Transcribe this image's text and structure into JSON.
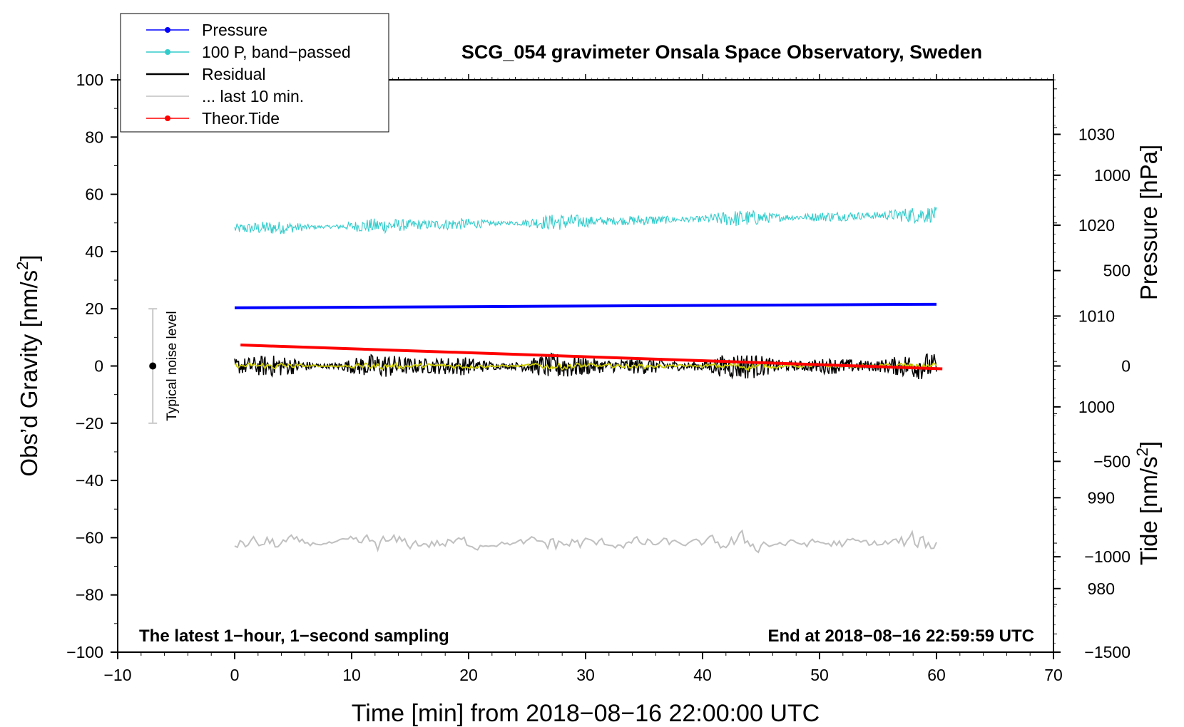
{
  "chart_data": {
    "type": "line",
    "title": "SCG_054 gravimeter Onsala Space Observatory, Sweden",
    "xlabel": "Time [min] from 2018−08−16 22:00:00 UTC",
    "ylabel_left_main": "Obs’d Gravity [nm/s",
    "ylabel_left_sup": "2",
    "ylabel_left_end": "]",
    "ylabel_pressure": "Pressure [hPa]",
    "ylabel_tide_main": "Tide [nm/s",
    "ylabel_tide_sup": "2",
    "ylabel_tide_end": "]",
    "xlim": [
      -10,
      70
    ],
    "ylim": [
      -100,
      100
    ],
    "pressure_axis": {
      "range_hPa": [
        973,
        1036
      ],
      "ticks": [
        980,
        990,
        1000,
        1010,
        1020,
        1030
      ]
    },
    "tide_axis": {
      "range": [
        -1500,
        1500
      ],
      "ticks": [
        -1500,
        -1000,
        -500,
        0,
        500,
        1000
      ]
    },
    "x_ticks": [
      -10,
      0,
      10,
      20,
      30,
      40,
      50,
      60,
      70
    ],
    "y_ticks": [
      -100,
      -80,
      -60,
      -40,
      -20,
      0,
      20,
      40,
      60,
      80,
      100
    ],
    "tick_labels": {
      "x": [
        "−10",
        "0",
        "10",
        "20",
        "30",
        "40",
        "50",
        "60",
        "70"
      ],
      "y": [
        "−100",
        "−80",
        "−60",
        "−40",
        "−20",
        "0",
        "20",
        "40",
        "60",
        "80",
        "100"
      ],
      "pressure": [
        "980",
        "990",
        "1000",
        "1010",
        "1020",
        "1030"
      ],
      "tide": [
        "−1500",
        "−1000",
        "−500",
        "0",
        "500",
        "1000"
      ]
    },
    "legend": [
      {
        "label": "Pressure",
        "color": "#0000ff",
        "marker": true
      },
      {
        "label": "100 P, band−passed",
        "color": "#33cccc",
        "marker": true
      },
      {
        "label": "Residual",
        "color": "#000000",
        "marker": false
      },
      {
        "label": "... last 10 min.",
        "color": "#c0c0c0",
        "marker": false
      },
      {
        "label": "Theor.Tide",
        "color": "#ff0000",
        "marker": true
      }
    ],
    "series": [
      {
        "name": "Pressure",
        "axis": "pressure",
        "color": "#0000ff",
        "x": [
          0,
          60
        ],
        "y_hPa": [
          1010.9,
          1011.3
        ]
      },
      {
        "name": "100 P, band−passed",
        "axis": "gravity",
        "color": "#33cccc",
        "x": [
          0,
          60
        ],
        "center": [
          48,
          53
        ],
        "noise_amplitude": 2.5
      },
      {
        "name": "Residual",
        "axis": "gravity",
        "color": "#000000",
        "x": [
          0,
          60
        ],
        "center": [
          0,
          0
        ],
        "noise_amplitude": 4
      },
      {
        "name": "Residual (smoothed)",
        "axis": "gravity",
        "color": "#cccc00",
        "x": [
          0,
          60
        ],
        "center": [
          0,
          0
        ],
        "noise_amplitude": 1.2
      },
      {
        "name": "... last 10 min.",
        "axis": "gravity",
        "color": "#c0c0c0",
        "x": [
          0,
          60
        ],
        "center": [
          -62,
          -62
        ],
        "noise_amplitude": 3.5
      },
      {
        "name": "Theor.Tide",
        "axis": "tide",
        "color": "#ff0000",
        "x": [
          0.5,
          60.5
        ],
        "y": [
          110,
          -15
        ]
      }
    ],
    "noise_marker": {
      "label": "Typical noise level",
      "x": -7,
      "y": 0,
      "range": [
        -20,
        20
      ]
    },
    "annotations": {
      "left": "The latest 1−hour, 1−second sampling",
      "right": "End at 2018−08−16 22:59:59 UTC"
    }
  }
}
